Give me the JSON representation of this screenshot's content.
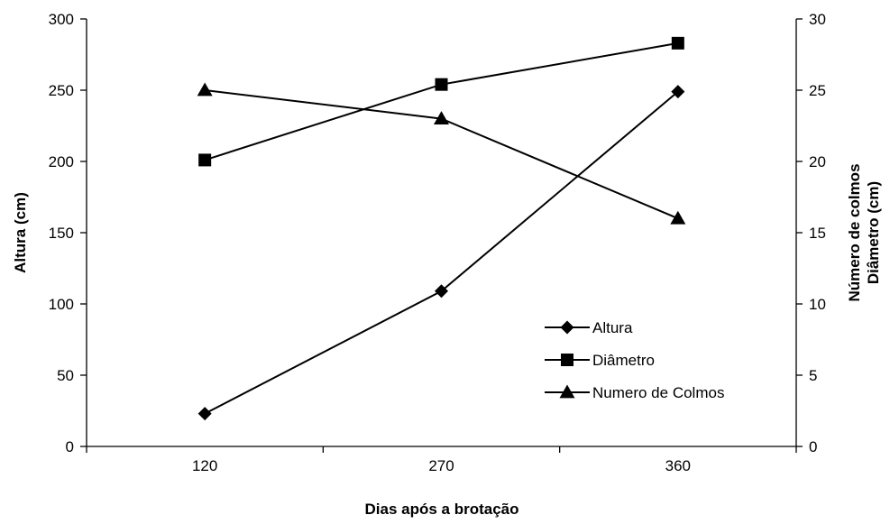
{
  "chart_data": {
    "type": "line",
    "categories": [
      "120",
      "270",
      "360"
    ],
    "xlabel": "Dias após a brotação",
    "ylabel_left": "Altura (cm)",
    "ylabel_right_lines": [
      "Número de colmos",
      "Diâmetro (cm)"
    ],
    "ylim_left": [
      0,
      300
    ],
    "yticks_left": [
      0,
      50,
      100,
      150,
      200,
      250,
      300
    ],
    "ylim_right": [
      0,
      30
    ],
    "yticks_right": [
      0,
      5,
      10,
      15,
      20,
      25,
      30
    ],
    "grid": false,
    "legend_position": "bottom-right",
    "series": [
      {
        "name": "Altura",
        "axis": "left",
        "marker": "diamond",
        "values": [
          23,
          109,
          249
        ]
      },
      {
        "name": "Diâmetro",
        "axis": "right",
        "marker": "square",
        "values": [
          20.1,
          25.4,
          28.3
        ]
      },
      {
        "name": "Numero de Colmos",
        "axis": "right",
        "marker": "triangle",
        "values": [
          25,
          23,
          16
        ]
      }
    ]
  }
}
